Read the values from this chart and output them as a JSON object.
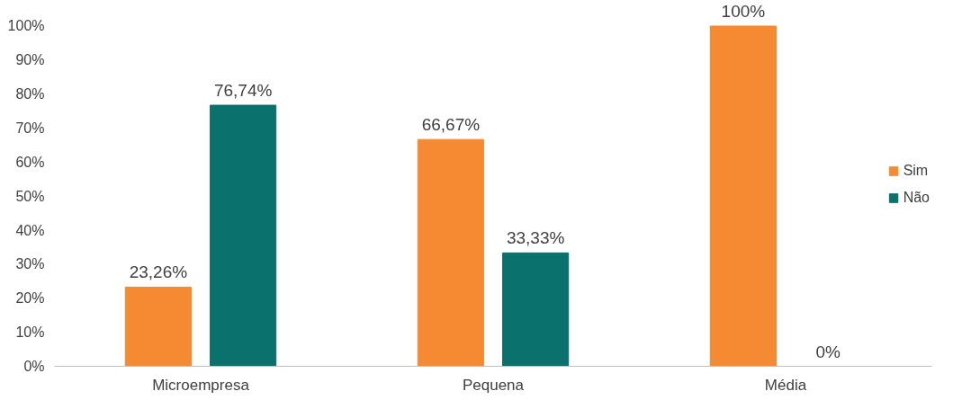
{
  "chart_data": {
    "type": "bar",
    "categories": [
      "Microempresa",
      "Pequena",
      "Média"
    ],
    "series": [
      {
        "name": "Sim",
        "color": "#f58a33",
        "values": [
          23.26,
          66.67,
          100
        ],
        "value_labels": [
          "23,26%",
          "66,67%",
          "100%"
        ]
      },
      {
        "name": "Não",
        "color": "#0b716c",
        "values": [
          76.74,
          33.33,
          0
        ],
        "value_labels": [
          "76,74%",
          "33,33%",
          "0%"
        ]
      }
    ],
    "ylim": [
      0,
      100
    ],
    "yticks": [
      {
        "value": 0,
        "label": "0%"
      },
      {
        "value": 10,
        "label": "10%"
      },
      {
        "value": 20,
        "label": "20%"
      },
      {
        "value": 30,
        "label": "30%"
      },
      {
        "value": 40,
        "label": "40%"
      },
      {
        "value": 50,
        "label": "50%"
      },
      {
        "value": 60,
        "label": "60%"
      },
      {
        "value": 70,
        "label": "70%"
      },
      {
        "value": 80,
        "label": "80%"
      },
      {
        "value": 90,
        "label": "90%"
      },
      {
        "value": 100,
        "label": "100%"
      }
    ],
    "grid": false,
    "legend": "right"
  }
}
